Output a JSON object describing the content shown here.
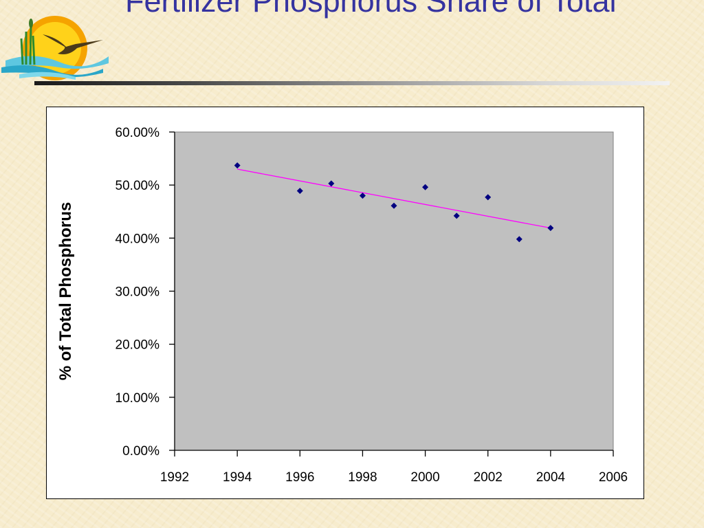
{
  "slide": {
    "title": "Fertilizer Phosphorus Share of Total"
  },
  "colors": {
    "title": "#3533a0",
    "plot_area": "#c0c0c0",
    "marker": "#000080",
    "trendline": "#ff00ff"
  },
  "logo": {
    "icon": "sunset-bird-logo-icon"
  },
  "chart_data": {
    "type": "scatter",
    "title": "",
    "xlabel": "",
    "ylabel": "% of Total Phosphorus",
    "xlim": [
      1992,
      2006
    ],
    "ylim": [
      0,
      0.6
    ],
    "x_ticks": [
      1992,
      1994,
      1996,
      1998,
      2000,
      2002,
      2004,
      2006
    ],
    "x_tick_labels": [
      "1992",
      "1994",
      "1996",
      "1998",
      "2000",
      "2002",
      "2004",
      "2006"
    ],
    "y_ticks": [
      0,
      0.1,
      0.2,
      0.3,
      0.4,
      0.5,
      0.6
    ],
    "y_tick_labels": [
      "0.00%",
      "10.00%",
      "20.00%",
      "30.00%",
      "40.00%",
      "50.00%",
      "60.00%"
    ],
    "grid": false,
    "series": [
      {
        "marker": "diamond",
        "x": [
          1994,
          1996,
          1997,
          1998,
          1999,
          2000,
          2001,
          2002,
          2003,
          2004
        ],
        "y": [
          0.537,
          0.489,
          0.503,
          0.48,
          0.461,
          0.496,
          0.442,
          0.477,
          0.398,
          0.419
        ]
      }
    ],
    "trendline": {
      "type": "linear",
      "x": [
        1994,
        2004
      ],
      "y": [
        0.53,
        0.419
      ]
    }
  }
}
